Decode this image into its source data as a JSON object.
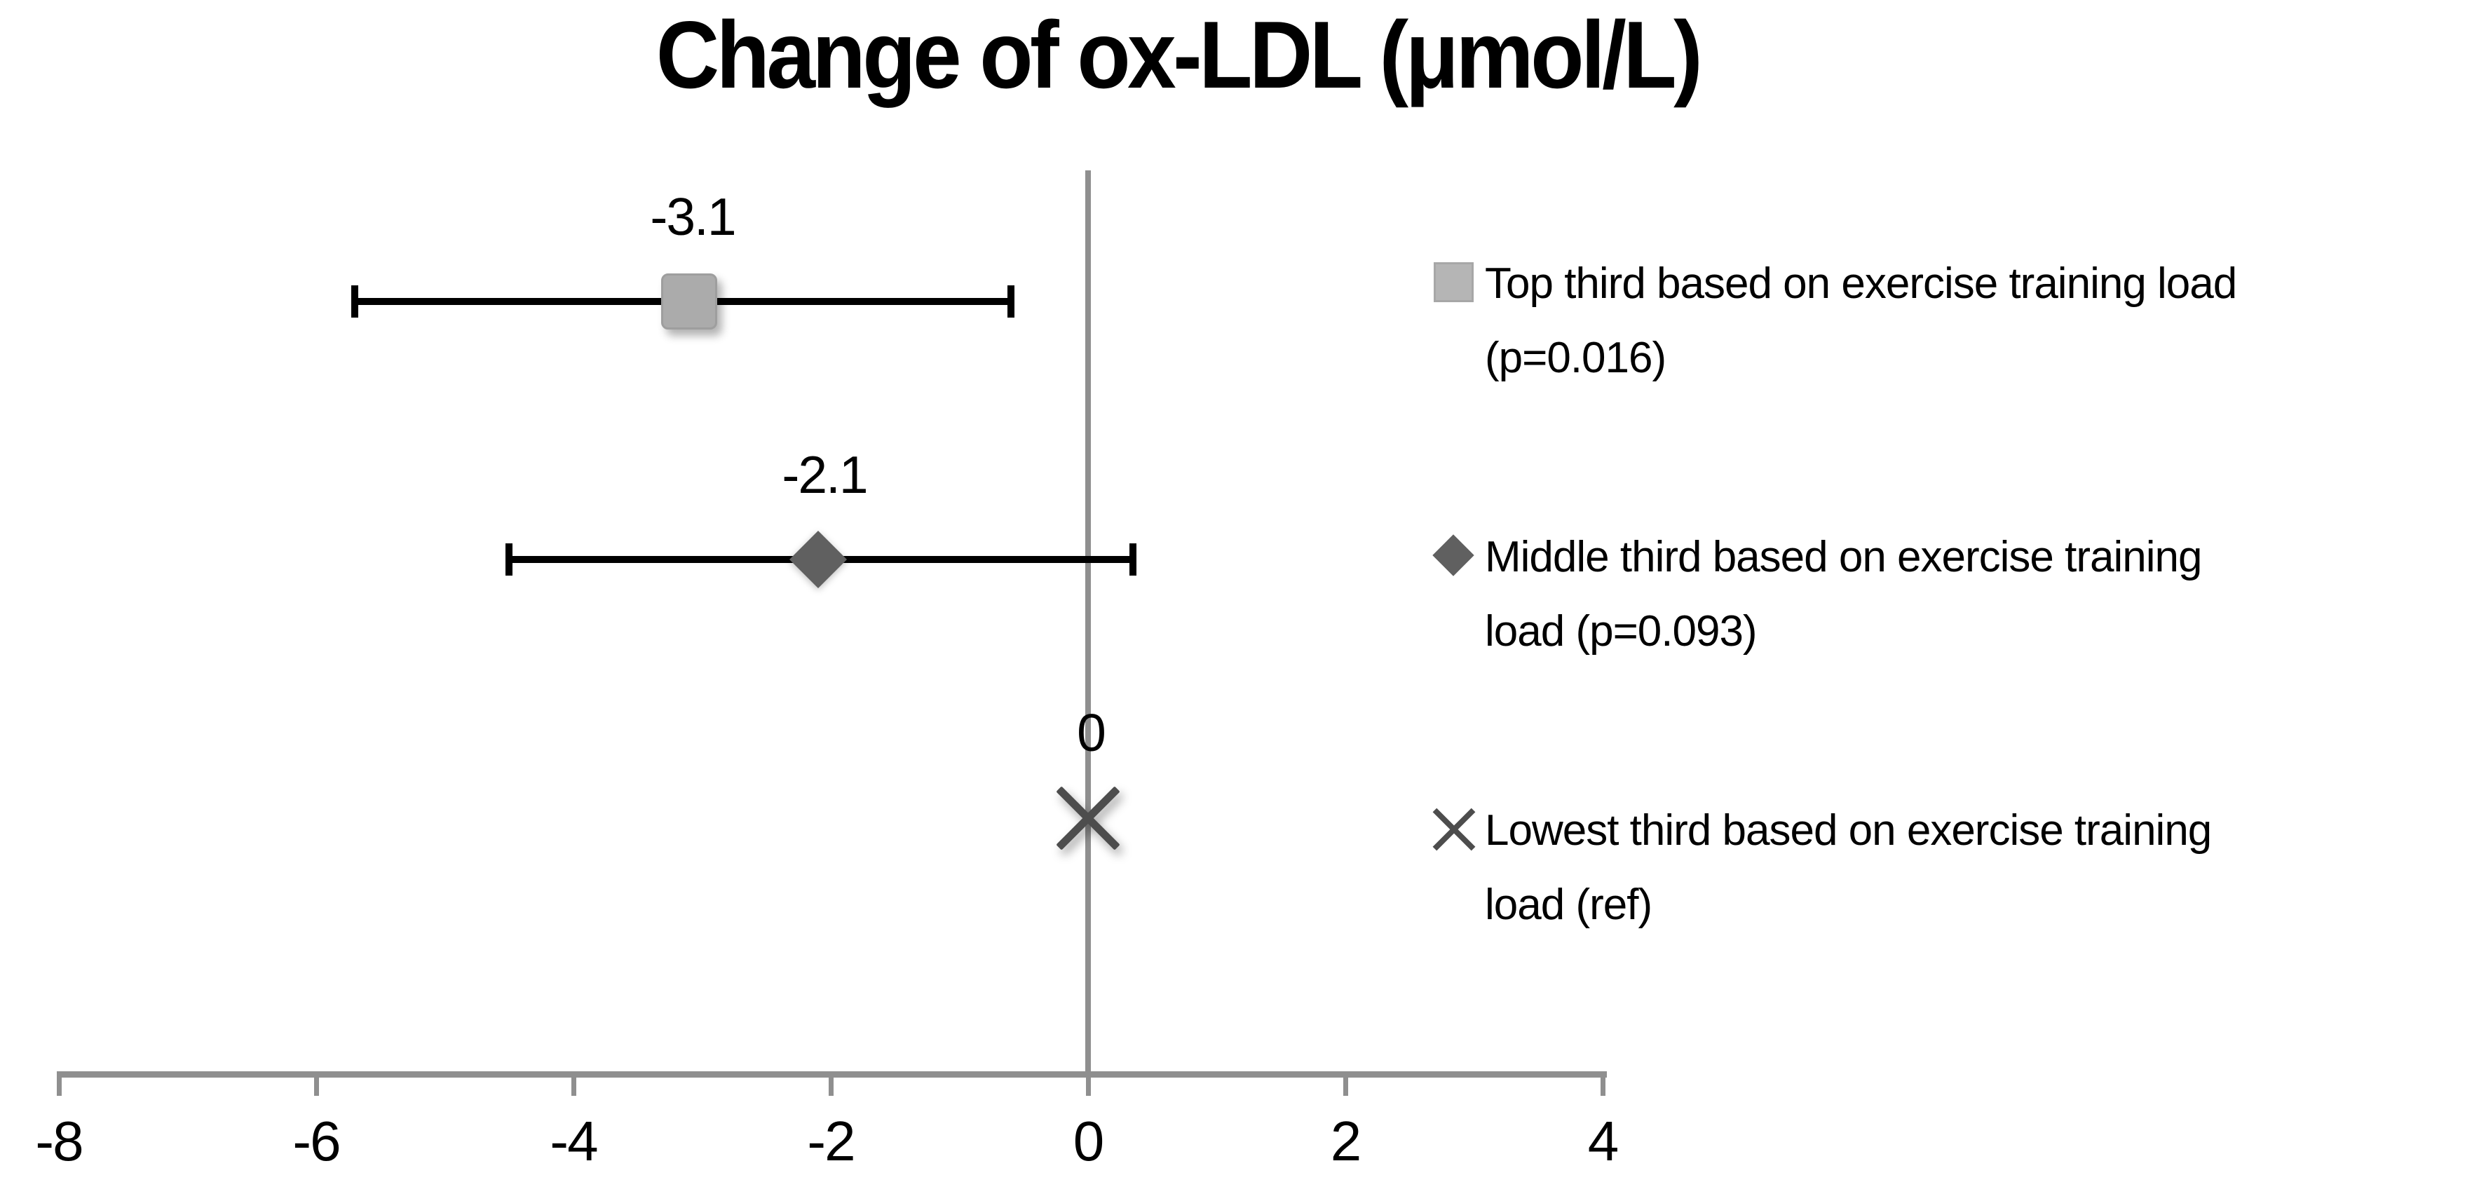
{
  "chart_data": {
    "type": "scatter",
    "title": "Change of ox-LDL (μmol/L)",
    "xlabel": "",
    "ylabel": "",
    "grid": false,
    "legend_position": "right",
    "x_axis": {
      "range": [
        -8,
        4
      ],
      "ticks": [
        -8,
        -6,
        -4,
        -2,
        0,
        2,
        4
      ],
      "tick_labels": [
        "-8",
        "-6",
        "-4",
        "-2",
        "0",
        "2",
        "4"
      ]
    },
    "zero_reference_line": 0,
    "series": [
      {
        "name": "Top third based on exercise training load (p=0.016)",
        "marker": "square",
        "color": "#ababab",
        "value": -3.1,
        "data_label": "-3.1",
        "ci": [
          -5.7,
          -0.6
        ],
        "p_value": "p=0.016",
        "legend_line1": "Top third based on exercise training load",
        "legend_line2": "(p=0.016)"
      },
      {
        "name": "Middle third based on exercise training load (p=0.093)",
        "marker": "diamond",
        "color": "#606060",
        "value": -2.1,
        "data_label": "-2.1",
        "ci": [
          -4.5,
          0.35
        ],
        "p_value": "p=0.093",
        "legend_line1": "Middle third based on exercise training",
        "legend_line2": "load (p=0.093)"
      },
      {
        "name": "Lowest third based on exercise training load (ref)",
        "marker": "x",
        "color": "#4d4d4d",
        "value": 0,
        "data_label": "0",
        "ci": null,
        "p_value": "ref",
        "legend_line1": "Lowest third based on exercise training",
        "legend_line2": "load  (ref)"
      }
    ]
  },
  "colors": {
    "background": "#ffffff",
    "axis": "#8f8f8f",
    "error_bar": "#000000",
    "text": "#000000"
  }
}
